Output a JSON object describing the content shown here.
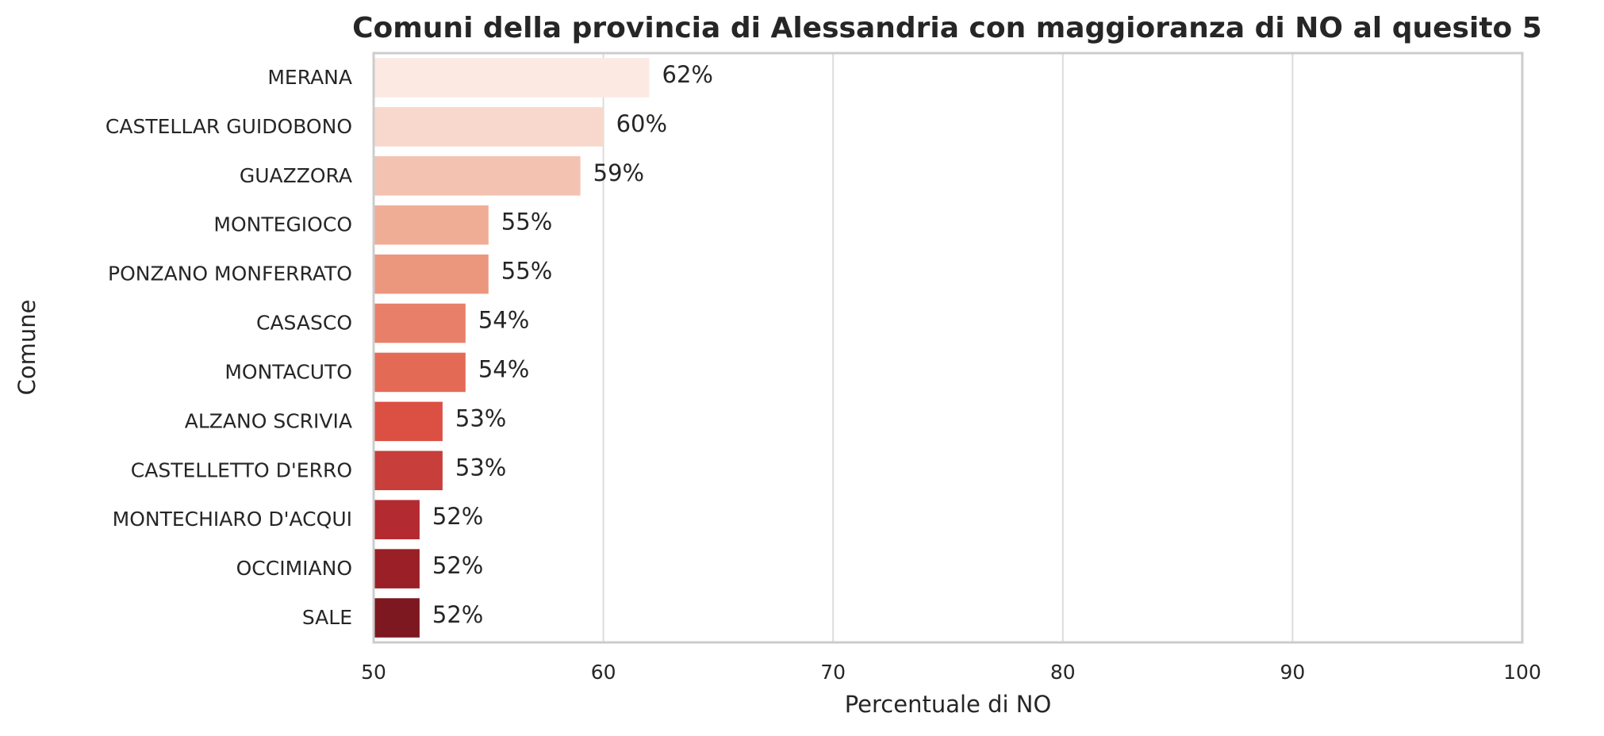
{
  "chart_data": {
    "type": "barh",
    "title": "Comuni della provincia di Alessandria con maggioranza di NO al quesito 5",
    "x_label": "Percentuale di NO",
    "y_label": "Comune",
    "categories": [
      "MERANA",
      "CASTELLAR GUIDOBONO",
      "GUAZZORA",
      "MONTEGIOCO",
      "PONZANO MONFERRATO",
      "CASASCO",
      "MONTACUTO",
      "ALZANO SCRIVIA",
      "CASTELLETTO D'ERRO",
      "MONTECHIARO D'ACQUI",
      "OCCIMIANO",
      "SALE"
    ],
    "values": [
      62,
      60,
      59,
      55,
      55,
      54,
      54,
      53,
      53,
      52,
      52,
      52
    ],
    "value_labels": [
      "62%",
      "60%",
      "59%",
      "55%",
      "55%",
      "54%",
      "54%",
      "53%",
      "53%",
      "52%",
      "52%",
      "52%"
    ],
    "colors": [
      "#fce9e2",
      "#f8d8cc",
      "#f4c2b0",
      "#f0ad96",
      "#eb977e",
      "#e88069",
      "#e36b56",
      "#db5043",
      "#c73e3a",
      "#b32a30",
      "#9a1f26",
      "#7d1820"
    ],
    "xlim": [
      50,
      100
    ],
    "xticks": [
      50,
      60,
      70,
      80,
      90,
      100
    ],
    "grid": true
  }
}
